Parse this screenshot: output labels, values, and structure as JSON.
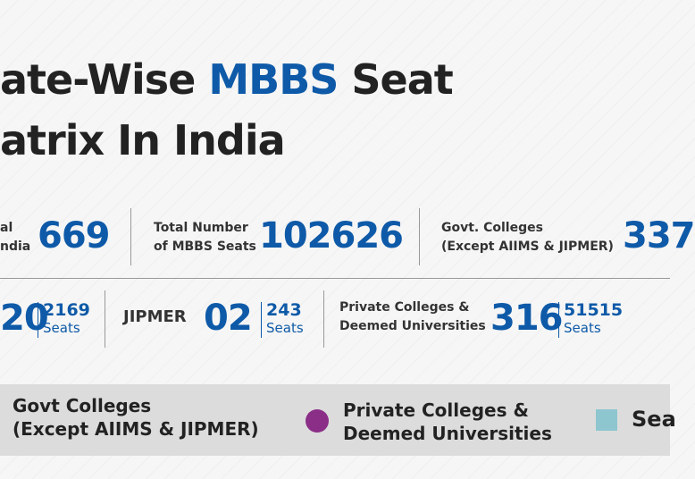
{
  "title": {
    "line1_start": "ate-Wise ",
    "line1_highlight": "MBBS",
    "line1_end": " Seat",
    "line2": "atrix In India"
  },
  "row1": [
    {
      "label_line1": "al",
      "label_line2": "ndia",
      "number": "669"
    },
    {
      "label_line1": "Total Number",
      "label_line2": "of MBBS Seats",
      "number": "102626"
    },
    {
      "label_line1": "Govt. Colleges",
      "label_line2": "(Except AIIMS & JIPMER)",
      "number": "337"
    }
  ],
  "row2": [
    {
      "number": "20",
      "seats": "2169",
      "seats_label": "Seats"
    },
    {
      "label": "JIPMER",
      "number": "02",
      "seats": "243",
      "seats_label": "Seats"
    },
    {
      "label_line1": "Private Colleges &",
      "label_line2": "Deemed Universities",
      "number": "316",
      "seats": "51515",
      "seats_label": "Seats"
    }
  ],
  "legend": [
    {
      "line1": "Govt Colleges",
      "line2": "(Except AIIMS & JIPMER)"
    },
    {
      "line1": "Private Colleges &",
      "line2": "Deemed Universities"
    },
    {
      "line1": "Sea"
    }
  ]
}
